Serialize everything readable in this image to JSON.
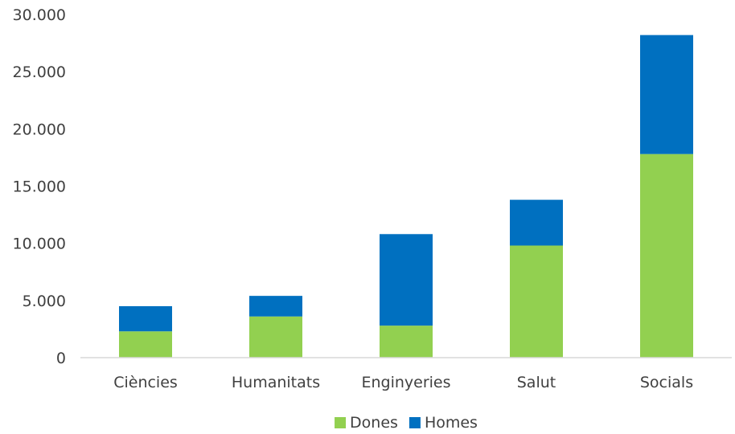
{
  "chart_data": {
    "type": "bar",
    "stacked": true,
    "title": "",
    "xlabel": "",
    "ylabel": "",
    "categories": [
      "Ciències",
      "Humanitats",
      "Enginyeries",
      "Salut",
      "Socials"
    ],
    "series": [
      {
        "name": "Dones",
        "color": "#92D050",
        "values": [
          2300,
          3600,
          2800,
          9800,
          17800
        ]
      },
      {
        "name": "Homes",
        "color": "#0070C0",
        "values": [
          2200,
          1800,
          8000,
          4000,
          10400
        ]
      }
    ],
    "ylim": [
      0,
      30000
    ],
    "yticks": [
      0,
      5000,
      10000,
      15000,
      20000,
      25000,
      30000
    ],
    "ytick_labels": [
      "0",
      "5.000",
      "10.000",
      "15.000",
      "20.000",
      "25.000",
      "30.000"
    ],
    "grid": false,
    "legend_position": "bottom"
  }
}
